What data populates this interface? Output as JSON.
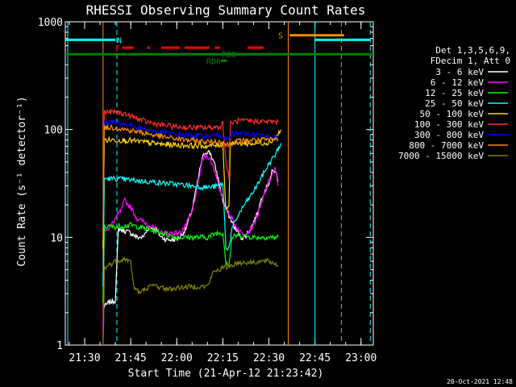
{
  "chart_data": {
    "type": "line",
    "title": "RHESSI Observing Summary Count Rates",
    "xlabel": "Start Time (21-Apr-12 21:23:42)",
    "ylabel": "Count Rate (s⁻¹ detector⁻¹)",
    "yscale": "log",
    "xlim_minutes": [
      1283.7,
      1384.0
    ],
    "ylim": [
      1,
      1000
    ],
    "x_ticks": [
      {
        "minute": 1290,
        "label": "21:30"
      },
      {
        "minute": 1305,
        "label": "21:45"
      },
      {
        "minute": 1320,
        "label": "22:00"
      },
      {
        "minute": 1335,
        "label": "22:15"
      },
      {
        "minute": 1350,
        "label": "22:30"
      },
      {
        "minute": 1365,
        "label": "22:45"
      },
      {
        "minute": 1380,
        "label": "23:00"
      }
    ],
    "y_ticks": [
      {
        "value": 1,
        "label": "1"
      },
      {
        "value": 10,
        "label": "10"
      },
      {
        "value": 100,
        "label": "100"
      },
      {
        "value": 1000,
        "label": "1000"
      }
    ],
    "legend": {
      "position": "right",
      "header": [
        "Det 1,3,5,6,9,",
        "FDecim 1, Att 0"
      ]
    },
    "series": [
      {
        "name": "3 - 6 keV",
        "color": "#ffffff",
        "points": [
          [
            1296,
            2.2
          ],
          [
            1298,
            2.5
          ],
          [
            1300,
            2.6
          ],
          [
            1301,
            12
          ],
          [
            1303,
            11.5
          ],
          [
            1305,
            11
          ],
          [
            1307,
            10
          ],
          [
            1309,
            10
          ],
          [
            1311,
            12.5
          ],
          [
            1313,
            12
          ],
          [
            1315,
            10
          ],
          [
            1317,
            9.5
          ],
          [
            1319,
            9.5
          ],
          [
            1321,
            10
          ],
          [
            1323,
            12
          ],
          [
            1325,
            18
          ],
          [
            1327,
            35
          ],
          [
            1328,
            50
          ],
          [
            1329,
            60
          ],
          [
            1330,
            63
          ],
          [
            1331,
            60
          ],
          [
            1332,
            50
          ],
          [
            1333,
            40
          ],
          [
            1334,
            30
          ],
          [
            1335,
            22
          ],
          [
            1337,
            16
          ],
          [
            1339,
            12
          ],
          [
            1341,
            10
          ],
          [
            1342,
            10
          ],
          [
            1344,
            12
          ],
          [
            1346,
            16
          ],
          [
            1348,
            25
          ],
          [
            1350,
            32
          ],
          [
            1351,
            40
          ],
          [
            1352,
            42
          ],
          [
            1353,
            33
          ]
        ]
      },
      {
        "name": "6 - 12 keV",
        "color": "#ff00ff",
        "points": [
          [
            1296,
            1.2
          ],
          [
            1296.4,
            12
          ],
          [
            1298,
            12
          ],
          [
            1300,
            15
          ],
          [
            1302,
            18
          ],
          [
            1303,
            22
          ],
          [
            1305,
            19
          ],
          [
            1307,
            15
          ],
          [
            1309,
            14
          ],
          [
            1311,
            13
          ],
          [
            1313,
            12
          ],
          [
            1315,
            11
          ],
          [
            1317,
            11
          ],
          [
            1319,
            11
          ],
          [
            1321,
            11
          ],
          [
            1323,
            13
          ],
          [
            1325,
            17
          ],
          [
            1327,
            32
          ],
          [
            1328,
            48
          ],
          [
            1329,
            56
          ],
          [
            1330,
            57
          ],
          [
            1331,
            52
          ],
          [
            1332,
            44
          ],
          [
            1333,
            36
          ],
          [
            1334,
            28
          ],
          [
            1335,
            22
          ],
          [
            1337,
            17
          ],
          [
            1339,
            13
          ],
          [
            1341,
            11
          ],
          [
            1343,
            11
          ],
          [
            1345,
            13
          ],
          [
            1347,
            18
          ],
          [
            1349,
            28
          ],
          [
            1351,
            38
          ],
          [
            1352,
            43
          ],
          [
            1353,
            30
          ]
        ]
      },
      {
        "name": "12 - 25 keV",
        "color": "#00ff00",
        "points": [
          [
            1296,
            2.5
          ],
          [
            1296.4,
            12.5
          ],
          [
            1300,
            12.5
          ],
          [
            1305,
            13
          ],
          [
            1310,
            12
          ],
          [
            1315,
            11
          ],
          [
            1320,
            10
          ],
          [
            1325,
            10
          ],
          [
            1330,
            10
          ],
          [
            1333,
            11
          ],
          [
            1335,
            11
          ],
          [
            1336,
            6
          ],
          [
            1337,
            5.5
          ],
          [
            1338,
            10
          ],
          [
            1340,
            10.5
          ],
          [
            1345,
            10
          ],
          [
            1350,
            10
          ],
          [
            1353,
            10
          ]
        ]
      },
      {
        "name": "25 - 50 keV",
        "color": "#00ffff",
        "points": [
          [
            1296,
            3.5
          ],
          [
            1296.4,
            35
          ],
          [
            1300,
            35
          ],
          [
            1305,
            34
          ],
          [
            1310,
            33
          ],
          [
            1315,
            32
          ],
          [
            1320,
            31
          ],
          [
            1325,
            30
          ],
          [
            1330,
            29
          ],
          [
            1334,
            30
          ],
          [
            1335,
            32
          ],
          [
            1336,
            8
          ],
          [
            1337,
            8
          ],
          [
            1338,
            12
          ],
          [
            1340,
            16
          ],
          [
            1342,
            20
          ],
          [
            1344,
            24
          ],
          [
            1346,
            30
          ],
          [
            1348,
            38
          ],
          [
            1350,
            48
          ],
          [
            1352,
            58
          ],
          [
            1354,
            75
          ]
        ]
      },
      {
        "name": "50 - 100 keV",
        "color": "#ffd700",
        "points": [
          [
            1296,
            8
          ],
          [
            1296.4,
            80
          ],
          [
            1300,
            80
          ],
          [
            1305,
            79
          ],
          [
            1310,
            76
          ],
          [
            1315,
            73
          ],
          [
            1320,
            72
          ],
          [
            1325,
            71
          ],
          [
            1330,
            70
          ],
          [
            1334,
            72
          ],
          [
            1335,
            74
          ],
          [
            1336,
            18
          ],
          [
            1337,
            20
          ],
          [
            1337.5,
            76
          ],
          [
            1340,
            74
          ],
          [
            1345,
            74
          ],
          [
            1350,
            76
          ],
          [
            1352,
            82
          ],
          [
            1354,
            100
          ]
        ]
      },
      {
        "name": "100 - 300 keV",
        "color": "#ff2a2a",
        "points": [
          [
            1296,
            14
          ],
          [
            1296.4,
            145
          ],
          [
            1300,
            145
          ],
          [
            1303,
            140
          ],
          [
            1306,
            130
          ],
          [
            1310,
            118
          ],
          [
            1315,
            110
          ],
          [
            1320,
            106
          ],
          [
            1325,
            104
          ],
          [
            1330,
            104
          ],
          [
            1334,
            106
          ],
          [
            1335,
            115
          ],
          [
            1336,
            50
          ],
          [
            1337,
            36
          ],
          [
            1337.5,
            115
          ],
          [
            1340,
            120
          ],
          [
            1345,
            120
          ],
          [
            1350,
            118
          ],
          [
            1353,
            118
          ]
        ]
      },
      {
        "name": "300 - 800 keV",
        "color": "#0000ff",
        "points": [
          [
            1296,
            12
          ],
          [
            1296.4,
            118
          ],
          [
            1300,
            116
          ],
          [
            1305,
            110
          ],
          [
            1310,
            100
          ],
          [
            1315,
            94
          ],
          [
            1320,
            90
          ],
          [
            1325,
            88
          ],
          [
            1330,
            87
          ],
          [
            1333,
            89
          ],
          [
            1335,
            90
          ],
          [
            1336,
            80
          ],
          [
            1337,
            82
          ],
          [
            1338,
            90
          ],
          [
            1340,
            92
          ],
          [
            1345,
            90
          ],
          [
            1350,
            86
          ],
          [
            1353,
            84
          ]
        ]
      },
      {
        "name": "800 - 7000 keV",
        "color": "#ff8c00",
        "points": [
          [
            1296,
            10
          ],
          [
            1296.4,
            105
          ],
          [
            1300,
            104
          ],
          [
            1305,
            98
          ],
          [
            1310,
            92
          ],
          [
            1315,
            86
          ],
          [
            1320,
            82
          ],
          [
            1325,
            79
          ],
          [
            1330,
            77
          ],
          [
            1335,
            77
          ],
          [
            1336,
            72
          ],
          [
            1337,
            73
          ],
          [
            1338,
            76
          ],
          [
            1340,
            78
          ],
          [
            1345,
            80
          ],
          [
            1350,
            80
          ],
          [
            1353,
            82
          ]
        ]
      },
      {
        "name": "7000 - 15000 keV",
        "color": "#808000",
        "points": [
          [
            1296,
            0.5
          ],
          [
            1296.4,
            5.2
          ],
          [
            1300,
            6
          ],
          [
            1303,
            6.3
          ],
          [
            1305,
            5.9
          ],
          [
            1306,
            3.5
          ],
          [
            1308,
            3
          ],
          [
            1310,
            3.4
          ],
          [
            1313,
            3.6
          ],
          [
            1315,
            3.4
          ],
          [
            1318,
            3.3
          ],
          [
            1320,
            3.4
          ],
          [
            1325,
            3.5
          ],
          [
            1330,
            3.5
          ],
          [
            1332,
            4.8
          ],
          [
            1335,
            5.2
          ],
          [
            1337,
            5.4
          ],
          [
            1340,
            5.8
          ],
          [
            1345,
            5.9
          ],
          [
            1350,
            6
          ],
          [
            1353,
            5.5
          ]
        ]
      }
    ],
    "vertical_lines": [
      {
        "minute": 1284.5,
        "color": "#00ffff",
        "style": "solid"
      },
      {
        "minute": 1296.0,
        "color": "#ff8c00",
        "style": "solid"
      },
      {
        "minute": 1300.5,
        "color": "#00ffff",
        "style": "dashed"
      },
      {
        "minute": 1356.3,
        "color": "#ff8c00",
        "style": "solid"
      },
      {
        "minute": 1365.0,
        "color": "#00ffff",
        "style": "solid"
      },
      {
        "minute": 1373.6,
        "color": "#ff8c00",
        "style": "dashed"
      },
      {
        "minute": 1383.0,
        "color": "#00ffff",
        "style": "dashed"
      }
    ],
    "flag_bars": [
      {
        "label": "N",
        "color": "#00ffff",
        "y_value": 680,
        "segments": [
          [
            1283.7,
            1300.0
          ],
          [
            1365.0,
            1383.0
          ]
        ],
        "label_minute": 1301.3
      },
      {
        "label": "S",
        "color": "#ff8c00",
        "y_value": 750,
        "segments": [
          [
            1356.8,
            1374.5
          ]
        ],
        "label_minute": 1353.8
      },
      {
        "label": "F",
        "color": "#ff0000",
        "y_value": 575,
        "segments": [
          [
            1302.2,
            1306.0
          ],
          [
            1310.4,
            1311.2
          ],
          [
            1315.0,
            1321.0
          ],
          [
            1322.5,
            1330.6
          ],
          [
            1332.3,
            1334.0
          ],
          [
            1343.0,
            1348.2
          ]
        ],
        "label_minute": 1300.8
      },
      {
        "label": "RD0",
        "color": "#008000",
        "y_value": 500,
        "segments": [
          [
            1283.7,
            1384.0
          ]
        ],
        "label_minute": 1337.0
      },
      {
        "label": "RD6",
        "color": "#008000",
        "y_value": 435,
        "segments": [
          [
            1334.3,
            1336.3
          ]
        ],
        "label_minute": 1332.0
      }
    ]
  },
  "footer": {
    "timestamp": "20-Oct-2021 12:48"
  }
}
